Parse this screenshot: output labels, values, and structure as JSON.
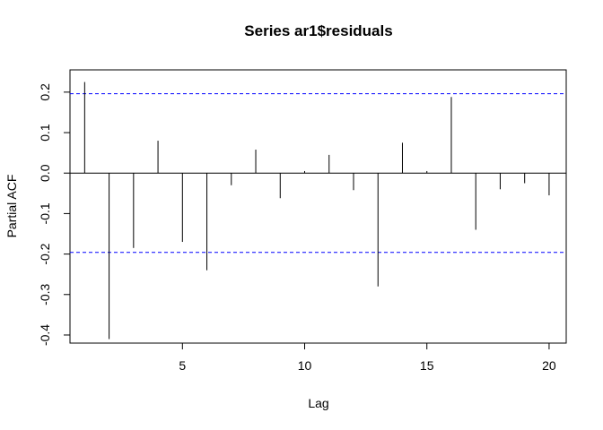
{
  "chart_data": {
    "type": "bar",
    "subtype": "pacf-spikes",
    "title": "Series  ar1$residuals",
    "xlabel": "Lag",
    "ylabel": "Partial ACF",
    "xlim": [
      0.4,
      20.7
    ],
    "ylim": [
      -0.42,
      0.255
    ],
    "xticks": [
      5,
      10,
      15,
      20
    ],
    "yticks": [
      -0.4,
      -0.3,
      -0.2,
      -0.1,
      0.0,
      0.1,
      0.2
    ],
    "x": [
      1,
      2,
      3,
      4,
      5,
      6,
      7,
      8,
      9,
      10,
      11,
      12,
      13,
      14,
      15,
      16,
      17,
      18,
      19,
      20
    ],
    "values": [
      0.225,
      -0.41,
      -0.185,
      0.08,
      -0.17,
      -0.24,
      -0.03,
      0.058,
      -0.062,
      0.005,
      0.045,
      -0.042,
      -0.28,
      0.075,
      0.005,
      0.188,
      -0.14,
      -0.04,
      -0.025,
      -0.055
    ],
    "confidence_band": 0.196,
    "colors": {
      "spike": "#000000",
      "band": "#0000ff",
      "zero_line": "#000000"
    },
    "grid": false,
    "legend": "none"
  }
}
